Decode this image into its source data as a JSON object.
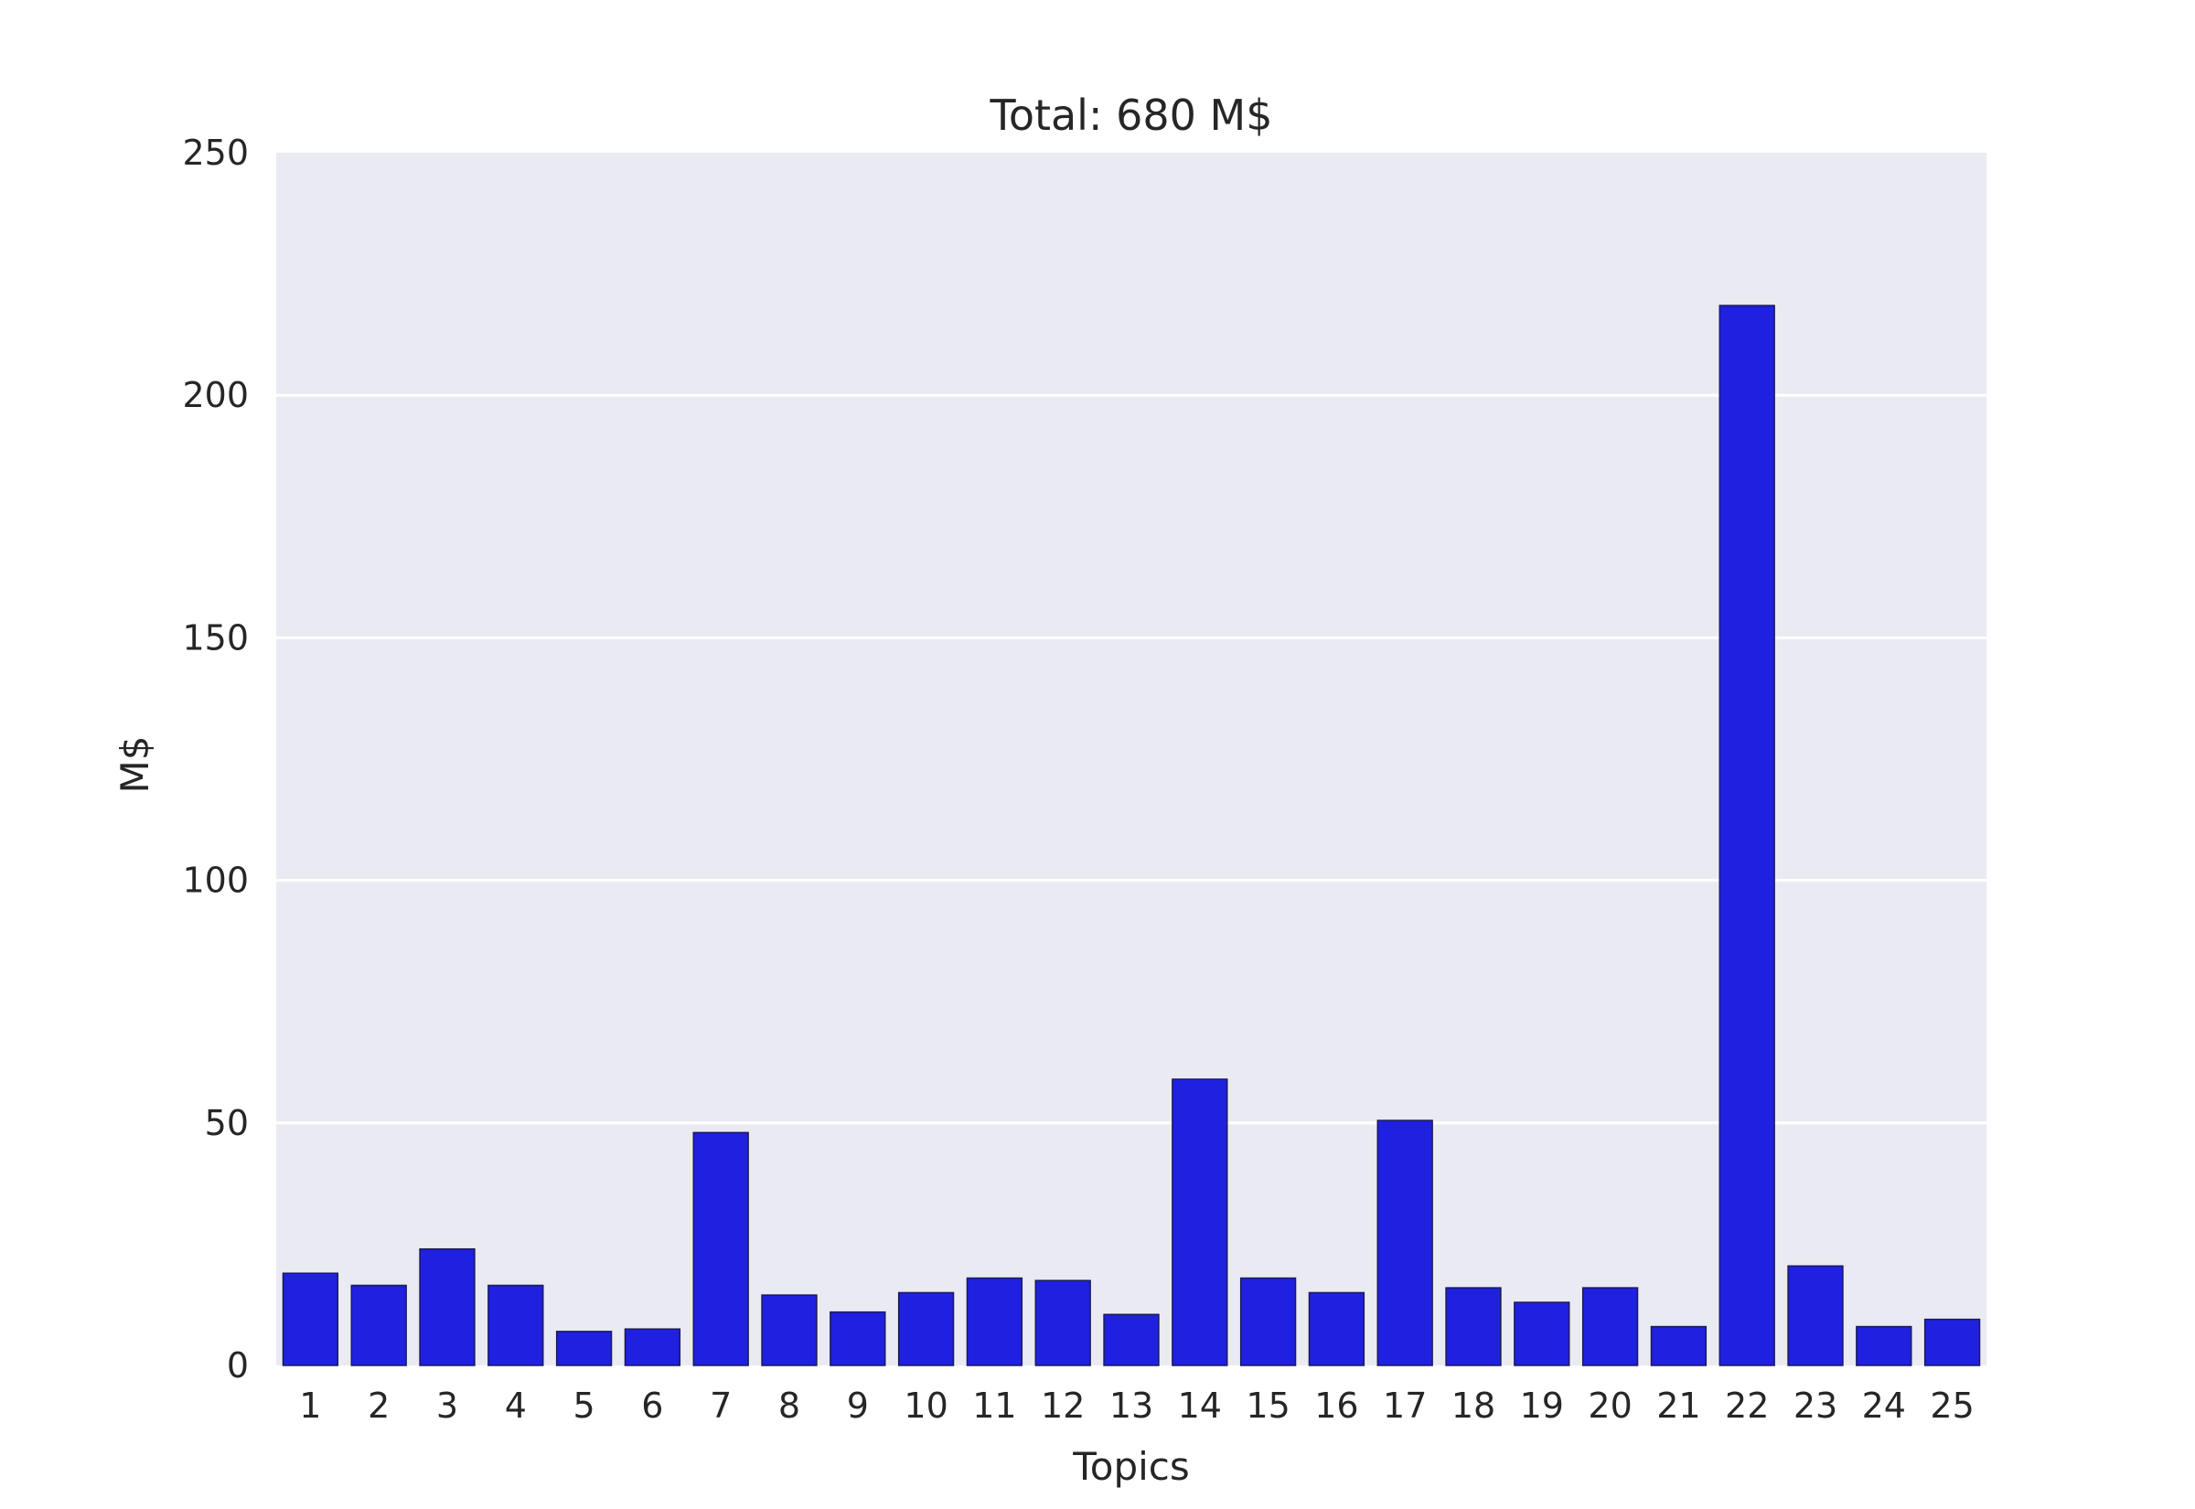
{
  "chart_data": {
    "type": "bar",
    "title": "Total: 680 M$",
    "xlabel": "Topics",
    "ylabel": "M$",
    "ylim": [
      0,
      250
    ],
    "yticks": [
      0,
      50,
      100,
      150,
      200,
      250
    ],
    "grid": true,
    "bar_color": "#2020e0",
    "background_color": "#eaeaf2",
    "categories": [
      "1",
      "2",
      "3",
      "4",
      "5",
      "6",
      "7",
      "8",
      "9",
      "10",
      "11",
      "12",
      "13",
      "14",
      "15",
      "16",
      "17",
      "18",
      "19",
      "20",
      "21",
      "22",
      "23",
      "24",
      "25"
    ],
    "values": [
      19,
      16.5,
      24,
      16.5,
      7,
      7.5,
      48,
      14.5,
      11,
      15,
      18,
      17.5,
      10.5,
      59,
      18,
      15,
      50.5,
      16,
      13,
      16,
      8,
      218.5,
      20.5,
      8,
      9.5
    ]
  }
}
